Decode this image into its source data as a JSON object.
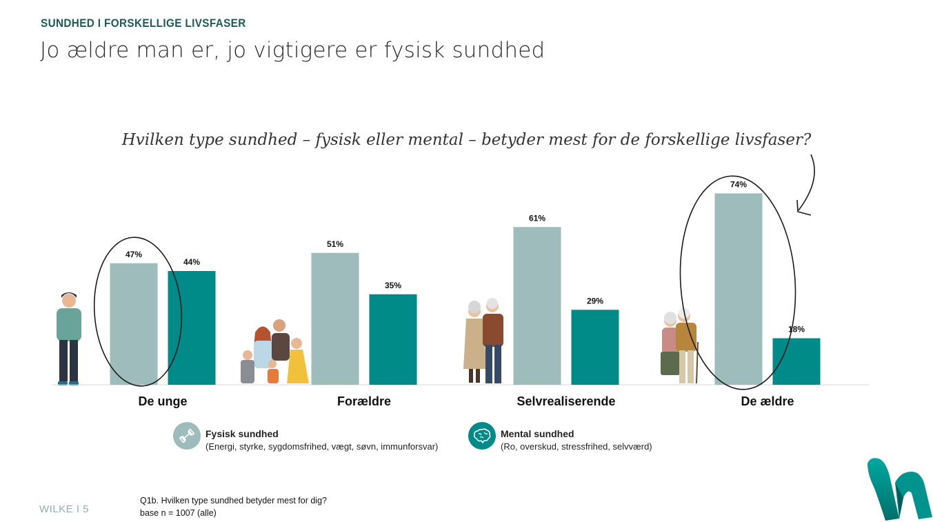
{
  "header": {
    "kicker": "SUNDHED I FORSKELLIGE LIVSFASER",
    "title": "Jo ældre man er, jo vigtigere er fysisk sundhed"
  },
  "colors": {
    "fysisk": "#9dbcbb",
    "mental": "#008b89",
    "accent": "#1d5a57",
    "axis": "#d8d8d8"
  },
  "chart_data": {
    "type": "bar",
    "title": "Hvilken type sundhed – fysisk eller mental – betyder mest for de forskellige livsfaser?",
    "categories": [
      "De unge",
      "Forældre",
      "Selvrealiserende",
      "De ældre"
    ],
    "series": [
      {
        "name": "Fysisk sundhed",
        "values": [
          47,
          51,
          61,
          74
        ],
        "color": "#9dbcbb"
      },
      {
        "name": "Mental sundhed",
        "values": [
          44,
          35,
          29,
          18
        ],
        "color": "#008b89"
      }
    ],
    "value_suffix": "%",
    "ylim": [
      0,
      80
    ],
    "grid": false,
    "legend_position": "bottom"
  },
  "legend": [
    {
      "name": "Fysisk sundhed",
      "desc": "(Energi, styrke, sygdomsfrihed, vægt, søvn, immunforsvar)",
      "icon": "dumbbell-icon"
    },
    {
      "name": "Mental sundhed",
      "desc": "(Ro, overskud, stressfrihed, selvværd)",
      "icon": "brain-icon"
    }
  ],
  "footer": {
    "brand": "WILKE I 5",
    "question": "Q1b. Hvilken type sundhed betyder mest for dig?",
    "base": "base n = 1007 (alle)"
  }
}
